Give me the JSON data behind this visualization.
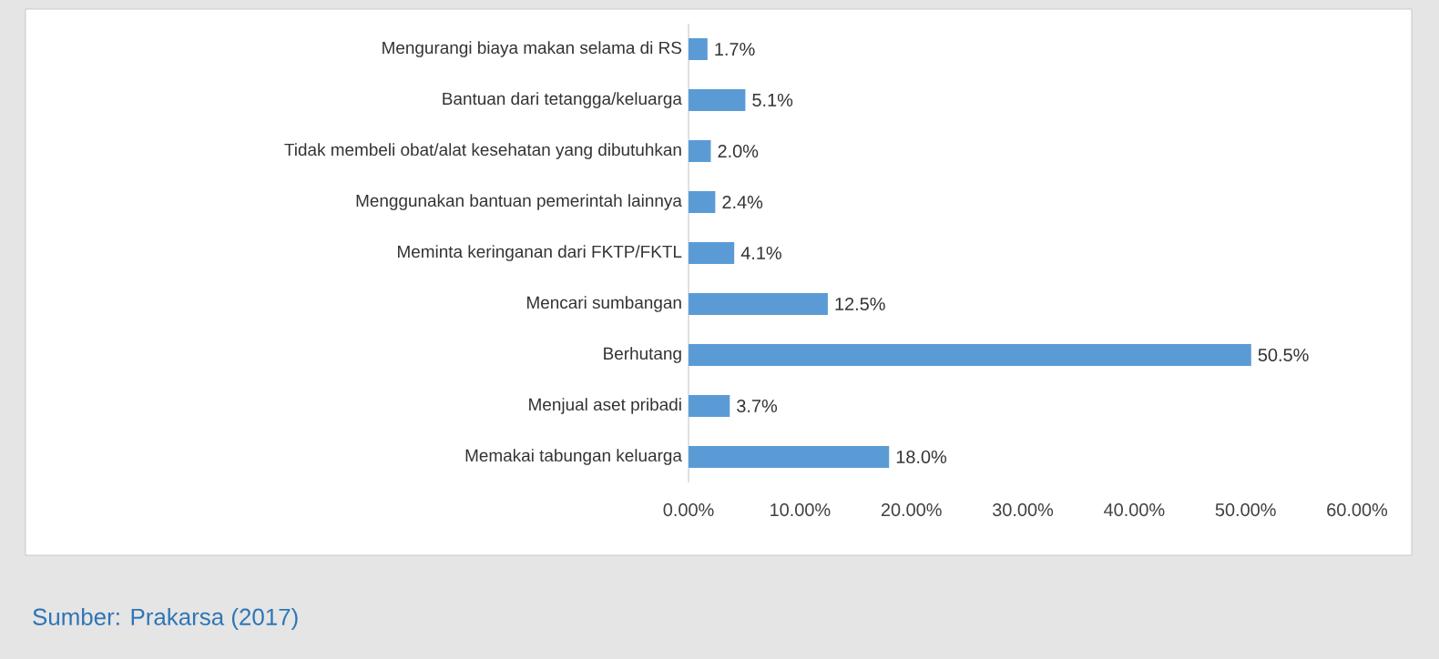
{
  "chart_data": {
    "type": "bar",
    "orientation": "horizontal",
    "categories": [
      "Mengurangi biaya makan selama di RS",
      "Bantuan dari tetangga/keluarga",
      "Tidak membeli obat/alat kesehatan yang dibutuhkan",
      "Menggunakan bantuan pemerintah lainnya",
      "Meminta keringanan dari FKTP/FKTL",
      "Mencari sumbangan",
      "Berhutang",
      "Menjual aset pribadi",
      "Memakai tabungan keluarga"
    ],
    "values": [
      1.7,
      5.1,
      2.0,
      2.4,
      4.1,
      12.5,
      50.5,
      3.7,
      18.0
    ],
    "value_labels": [
      "1.7%",
      "5.1%",
      "2.0%",
      "2.4%",
      "4.1%",
      "12.5%",
      "50.5%",
      "3.7%",
      "18.0%"
    ],
    "color": "#5b9bd5",
    "xlim": [
      0,
      60
    ],
    "xticks": [
      {
        "value": 0,
        "label": "0.00%"
      },
      {
        "value": 10,
        "label": "10.00%"
      },
      {
        "value": 20,
        "label": "20.00%"
      },
      {
        "value": 30,
        "label": "30.00%"
      },
      {
        "value": 40,
        "label": "40.00%"
      },
      {
        "value": 50,
        "label": "50.00%"
      },
      {
        "value": 60,
        "label": "60.00%"
      }
    ],
    "annotations": [
      "Sumber: Prakarsa (2017)"
    ]
  }
}
